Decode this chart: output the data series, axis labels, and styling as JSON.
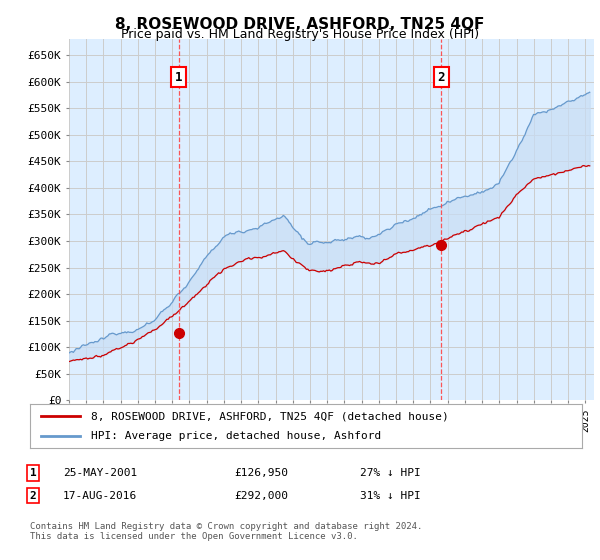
{
  "title": "8, ROSEWOOD DRIVE, ASHFORD, TN25 4QF",
  "subtitle": "Price paid vs. HM Land Registry's House Price Index (HPI)",
  "yticks": [
    0,
    50000,
    100000,
    150000,
    200000,
    250000,
    300000,
    350000,
    400000,
    450000,
    500000,
    550000,
    600000,
    650000
  ],
  "ylim": [
    0,
    680000
  ],
  "xlim_start": 1995.0,
  "xlim_end": 2025.5,
  "plot_bg": "#ddeeff",
  "grid_color": "#c8d8e8",
  "fill_color": "#b8d0f0",
  "red_line_color": "#cc0000",
  "blue_line_color": "#6699cc",
  "sale1_x": 2001.38,
  "sale1_y": 126950,
  "sale1_label": "1",
  "sale1_date": "25-MAY-2001",
  "sale1_price": "£126,950",
  "sale1_hpi": "27% ↓ HPI",
  "sale2_x": 2016.62,
  "sale2_y": 292000,
  "sale2_label": "2",
  "sale2_date": "17-AUG-2016",
  "sale2_price": "£292,000",
  "sale2_hpi": "31% ↓ HPI",
  "legend_line1": "8, ROSEWOOD DRIVE, ASHFORD, TN25 4QF (detached house)",
  "legend_line2": "HPI: Average price, detached house, Ashford",
  "footer": "Contains HM Land Registry data © Crown copyright and database right 2024.\nThis data is licensed under the Open Government Licence v3.0."
}
